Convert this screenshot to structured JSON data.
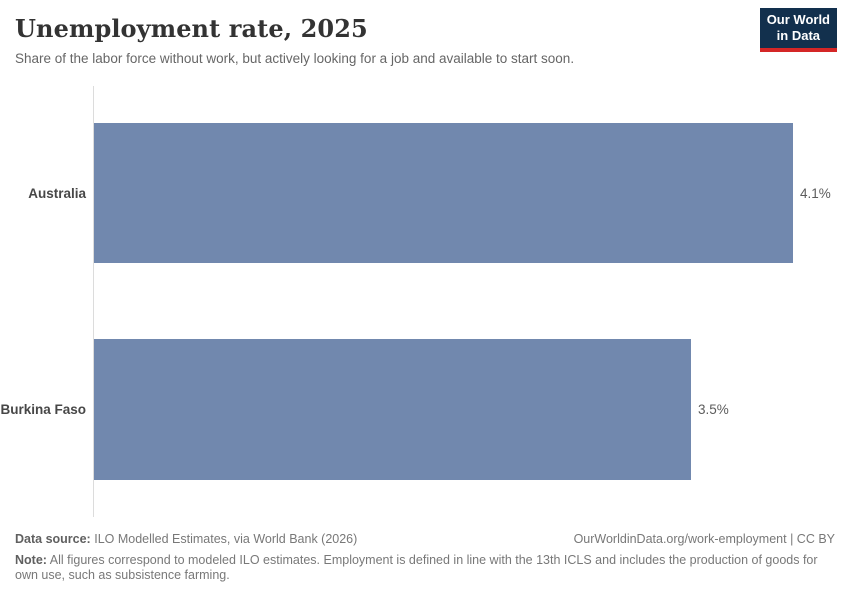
{
  "header": {
    "title": "Unemployment rate, 2025",
    "subtitle": "Share of the labor force without work, but actively looking for a job and available to start soon."
  },
  "logo": {
    "line1": "Our World",
    "line2": "in Data",
    "bg_color": "#12304d",
    "accent_color": "#d42626"
  },
  "chart_data": {
    "type": "bar",
    "orientation": "horizontal",
    "title": "Unemployment rate, 2025",
    "categories": [
      "Australia",
      "Burkina Faso"
    ],
    "values": [
      4.1,
      3.5
    ],
    "value_labels": [
      "4.1%",
      "3.5%"
    ],
    "unit": "%",
    "xlim": [
      0,
      4.1
    ],
    "grid": false,
    "legend": "none",
    "bar_color": "#7188ae",
    "axis_line_color": "#dcdcdc"
  },
  "footer": {
    "data_source_label": "Data source:",
    "data_source_text": "ILO Modelled Estimates, via World Bank (2026)",
    "credit": "OurWorldinData.org/work-employment | CC BY",
    "note_label": "Note:",
    "note_text": "All figures correspond to modeled ILO estimates. Employment is defined in line with the 13th ICLS and includes the production of goods for own use, such as subsistence farming."
  }
}
